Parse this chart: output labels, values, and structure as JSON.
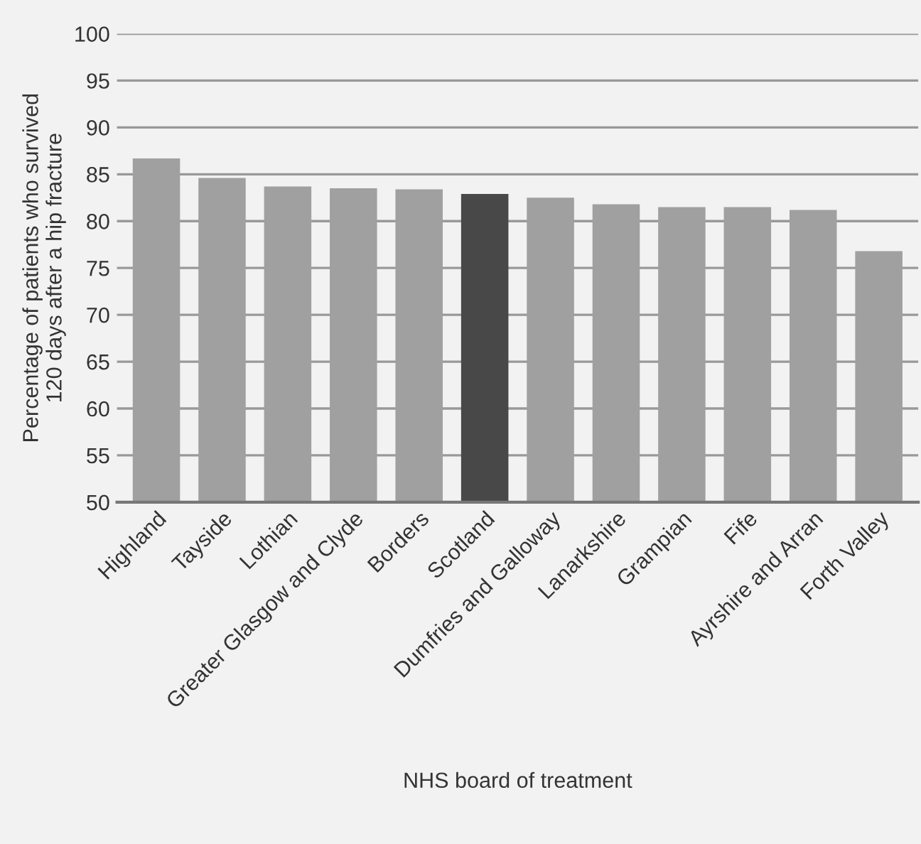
{
  "chart_data": {
    "type": "bar",
    "xlabel": "NHS board of treatment",
    "ylabel": "Percentage of patients who survived\n120 days after a hip fracture",
    "categories": [
      "Highland",
      "Tayside",
      "Lothian",
      "Greater Glasgow and Clyde",
      "Borders",
      "Scotland",
      "Dumfries and Galloway",
      "Lanarkshire",
      "Grampian",
      "Fife",
      "Ayrshire and Arran",
      "Forth Valley"
    ],
    "values": [
      86.7,
      84.6,
      83.7,
      83.5,
      83.4,
      82.9,
      82.5,
      81.8,
      81.5,
      81.5,
      81.2,
      76.8
    ],
    "colors": [
      "#a0a0a0",
      "#a0a0a0",
      "#a0a0a0",
      "#a0a0a0",
      "#a0a0a0",
      "#484848",
      "#a0a0a0",
      "#a0a0a0",
      "#a0a0a0",
      "#a0a0a0",
      "#a0a0a0",
      "#a0a0a0"
    ],
    "ylim": [
      50,
      100
    ],
    "yticks": [
      50,
      55,
      60,
      65,
      70,
      75,
      80,
      85,
      90,
      95,
      100
    ],
    "grid": "y"
  }
}
